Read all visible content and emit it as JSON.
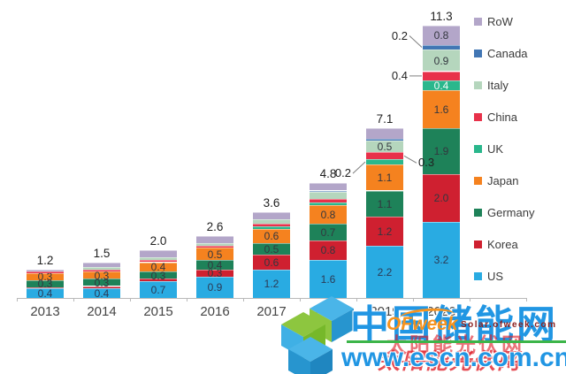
{
  "chart_data": {
    "type": "bar",
    "stacked": true,
    "categories": [
      "2013",
      "2014",
      "2015",
      "2016",
      "2017",
      "2018",
      "2019",
      "2020"
    ],
    "totals": [
      "1.2",
      "1.5",
      "2.0",
      "2.6",
      "3.6",
      "4.8",
      "7.1",
      "11.3"
    ],
    "ylim": [
      0,
      11.5
    ],
    "grid": false,
    "series": [
      {
        "name": "US",
        "color": "#29abe2",
        "values": [
          0.4,
          0.4,
          0.7,
          0.9,
          1.2,
          1.6,
          2.2,
          3.2
        ],
        "labels": [
          "0.4",
          "0.4",
          "0.7",
          "0.9",
          "1.2",
          "1.6",
          "2.2",
          "3.2"
        ],
        "label_color": "#2b3a55"
      },
      {
        "name": "Korea",
        "color": "#cf2030",
        "values": [
          0.05,
          0.1,
          0.1,
          0.3,
          0.6,
          0.8,
          1.2,
          2.0
        ],
        "labels": [
          "",
          "",
          "",
          "0.3",
          "0.6",
          "0.8",
          "1.2",
          "2.0"
        ],
        "label_color": "#33373f"
      },
      {
        "name": "Germany",
        "color": "#1e8259",
        "values": [
          0.3,
          0.3,
          0.3,
          0.4,
          0.5,
          0.7,
          1.1,
          1.9
        ],
        "labels": [
          "0.3",
          "0.3",
          "0.3",
          "0.4",
          "0.5",
          "0.7",
          "1.1",
          "1.9"
        ],
        "label_color": "#33373f"
      },
      {
        "name": "Japan",
        "color": "#f5821f",
        "values": [
          0.3,
          0.3,
          0.4,
          0.5,
          0.6,
          0.8,
          1.1,
          1.6
        ],
        "labels": [
          "0.3",
          "0.3",
          "0.4",
          "0.5",
          "0.6",
          "0.8",
          "1.1",
          "1.6"
        ],
        "label_color": "#33373f"
      },
      {
        "name": "UK",
        "color": "#2ab78c",
        "values": [
          0,
          0,
          0,
          0,
          0.1,
          0.1,
          0.2,
          0.4
        ],
        "labels": [
          "",
          "",
          "",
          "",
          "",
          "",
          "",
          "0.4"
        ],
        "label_color": "#f2fbf7"
      },
      {
        "name": "China",
        "color": "#e8314a",
        "values": [
          0.05,
          0.1,
          0.1,
          0.1,
          0.1,
          0.15,
          0.3,
          0.4
        ],
        "labels": [
          "",
          "",
          "",
          "",
          "",
          "",
          "",
          ""
        ],
        "label_color": "#33373f"
      },
      {
        "name": "Italy",
        "color": "#b5d6bd",
        "values": [
          0,
          0.1,
          0.1,
          0.1,
          0.2,
          0.3,
          0.5,
          0.9
        ],
        "labels": [
          "",
          "",
          "",
          "",
          "",
          "",
          "0.5",
          "0.9"
        ],
        "label_color": "#33373f"
      },
      {
        "name": "Canada",
        "color": "#4176b4",
        "values": [
          0,
          0,
          0,
          0,
          0,
          0.05,
          0.05,
          0.2
        ],
        "labels": [
          "",
          "",
          "",
          "",
          "",
          "",
          "",
          ""
        ],
        "label_color": "#33373f"
      },
      {
        "name": "RoW",
        "color": "#b3a6c9",
        "values": [
          0.1,
          0.2,
          0.3,
          0.3,
          0.3,
          0.3,
          0.45,
          0.8
        ],
        "labels": [
          "",
          "",
          "",
          "",
          "",
          "",
          "",
          "0.8"
        ],
        "label_color": "#33373f"
      }
    ],
    "callouts": [
      {
        "label": "0.2",
        "category_index": 6,
        "series": "UK",
        "side": "left",
        "dy": 13
      },
      {
        "label": "0.3",
        "category_index": 6,
        "series": "China",
        "side": "right",
        "dy": 8
      },
      {
        "label": "0.2",
        "category_index": 7,
        "series": "Canada",
        "side": "left",
        "dy": -13
      },
      {
        "label": "0.4",
        "category_index": 7,
        "series": "China",
        "side": "left",
        "dy": 0
      }
    ],
    "legend": {
      "position": "right",
      "items": [
        {
          "label": "RoW",
          "color": "#b3a6c9"
        },
        {
          "label": "Canada",
          "color": "#4176b4"
        },
        {
          "label": "Italy",
          "color": "#b5d6bd"
        },
        {
          "label": "China",
          "color": "#e8314a"
        },
        {
          "label": "UK",
          "color": "#2ab78c"
        },
        {
          "label": "Japan",
          "color": "#f5821f"
        },
        {
          "label": "Germany",
          "color": "#1e8259"
        },
        {
          "label": "Korea",
          "color": "#cf2030"
        },
        {
          "label": "US",
          "color": "#29abe2"
        }
      ]
    }
  },
  "watermark": {
    "site_name": "中国储能网",
    "site_url": "www.escn.com.cn",
    "ofweek_brand": "OFweek",
    "ofweek_domain": "Solar.ofweek.com",
    "ofweek_site_name": "太阳能光伏网",
    "colors": {
      "blue": "#2196e3",
      "green": "#3cb549",
      "orange": "#f7931e",
      "red": "#de1c26",
      "dark_red": "#8b2020"
    }
  },
  "logo_colors": {
    "green": "#8dc63f",
    "green_dark": "#76b82a",
    "blue_light": "#4ab5e8",
    "blue": "#2795cf",
    "blue_dark": "#1f86c0"
  }
}
